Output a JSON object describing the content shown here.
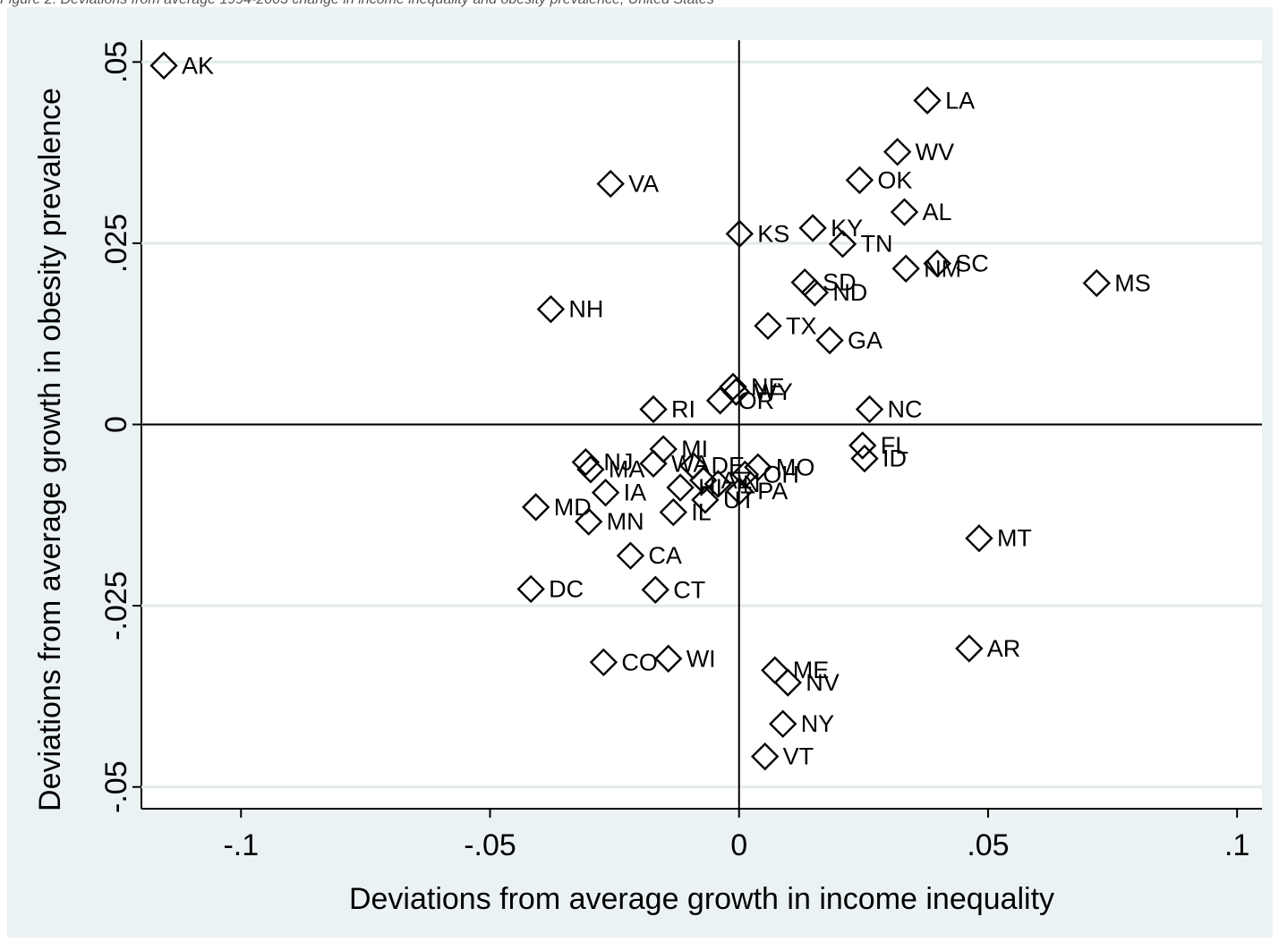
{
  "caption": "Figure 2. Deviations from average 1994-2003 change in income inequality and obesity prevalence, United States",
  "colors": {
    "background": "#eaf2f3",
    "plot": "#ffffff",
    "grid": "#e3eaec",
    "marker": "#000000"
  },
  "chart_data": {
    "type": "scatter",
    "title": "",
    "xlabel": "Deviations from average growth in income inequality",
    "ylabel": "Deviations from average growth in obesity prevalence",
    "xlim": [
      -0.12,
      0.105
    ],
    "ylim": [
      -0.053,
      0.053
    ],
    "xticks": [
      {
        "value": -0.1,
        "label": "-.1"
      },
      {
        "value": -0.05,
        "label": "-.05"
      },
      {
        "value": 0,
        "label": "0"
      },
      {
        "value": 0.05,
        "label": ".05"
      },
      {
        "value": 0.1,
        "label": ".1"
      }
    ],
    "yticks": [
      {
        "value": -0.05,
        "label": "-.05"
      },
      {
        "value": -0.025,
        "label": "-.025"
      },
      {
        "value": 0,
        "label": "0"
      },
      {
        "value": 0.025,
        "label": ".025"
      },
      {
        "value": 0.05,
        "label": ".05"
      }
    ],
    "grid": true,
    "reference_lines": {
      "x": 0,
      "y": 0
    },
    "marker": "hollow-diamond",
    "points": [
      {
        "label": "AK",
        "x": -0.1155,
        "y": 0.0495
      },
      {
        "label": "LA",
        "x": 0.0378,
        "y": 0.0447
      },
      {
        "label": "WV",
        "x": 0.0318,
        "y": 0.0376
      },
      {
        "label": "VA",
        "x": -0.0258,
        "y": 0.0332
      },
      {
        "label": "OK",
        "x": 0.0242,
        "y": 0.0337
      },
      {
        "label": "AL",
        "x": 0.0332,
        "y": 0.0293
      },
      {
        "label": "KY",
        "x": 0.0148,
        "y": 0.0271
      },
      {
        "label": "KS",
        "x": 0.0001,
        "y": 0.0263
      },
      {
        "label": "TN",
        "x": 0.0208,
        "y": 0.0249
      },
      {
        "label": "SC",
        "x": 0.0398,
        "y": 0.0222
      },
      {
        "label": "NM",
        "x": 0.0335,
        "y": 0.0215
      },
      {
        "label": "MS",
        "x": 0.0718,
        "y": 0.0195
      },
      {
        "label": "SD",
        "x": 0.0132,
        "y": 0.0196
      },
      {
        "label": "ND",
        "x": 0.0152,
        "y": 0.0182
      },
      {
        "label": "NH",
        "x": -0.0378,
        "y": 0.0159
      },
      {
        "label": "TX",
        "x": 0.0058,
        "y": 0.0136
      },
      {
        "label": "GA",
        "x": 0.0182,
        "y": 0.0116
      },
      {
        "label": "NE",
        "x": -0.0012,
        "y": 0.0052
      },
      {
        "label": "WY",
        "x": -0.0006,
        "y": 0.0045
      },
      {
        "label": "OR",
        "x": -0.0038,
        "y": 0.0033
      },
      {
        "label": "RI",
        "x": -0.0172,
        "y": 0.0021
      },
      {
        "label": "NC",
        "x": 0.0262,
        "y": 0.0021
      },
      {
        "label": "MI",
        "x": -0.0152,
        "y": -0.0034
      },
      {
        "label": "FL",
        "x": 0.0248,
        "y": -0.0029
      },
      {
        "label": "ID",
        "x": 0.0252,
        "y": -0.0047
      },
      {
        "label": "NJ",
        "x": -0.0308,
        "y": -0.0052
      },
      {
        "label": "MA",
        "x": -0.0298,
        "y": -0.0062
      },
      {
        "label": "WA",
        "x": -0.0172,
        "y": -0.0054
      },
      {
        "label": "DE",
        "x": -0.0092,
        "y": -0.0057
      },
      {
        "label": "MO",
        "x": 0.0038,
        "y": -0.0059
      },
      {
        "label": "OH",
        "x": 0.0012,
        "y": -0.0069
      },
      {
        "label": "AZ",
        "x": -0.0072,
        "y": -0.0077
      },
      {
        "label": "IN",
        "x": -0.0042,
        "y": -0.0082
      },
      {
        "label": "PA",
        "x": 0.0001,
        "y": -0.0092
      },
      {
        "label": "IA",
        "x": -0.0268,
        "y": -0.0094
      },
      {
        "label": "HI",
        "x": -0.0118,
        "y": -0.0087
      },
      {
        "label": "UT",
        "x": -0.0068,
        "y": -0.0104
      },
      {
        "label": "IL",
        "x": -0.0132,
        "y": -0.0121
      },
      {
        "label": "MD",
        "x": -0.0408,
        "y": -0.0114
      },
      {
        "label": "MN",
        "x": -0.0302,
        "y": -0.0134
      },
      {
        "label": "MT",
        "x": 0.0482,
        "y": -0.0157
      },
      {
        "label": "CA",
        "x": -0.0218,
        "y": -0.0181
      },
      {
        "label": "DC",
        "x": -0.0418,
        "y": -0.0227
      },
      {
        "label": "CT",
        "x": -0.0168,
        "y": -0.0228
      },
      {
        "label": "AR",
        "x": 0.0462,
        "y": -0.0309
      },
      {
        "label": "CO",
        "x": -0.0272,
        "y": -0.0328
      },
      {
        "label": "WI",
        "x": -0.0142,
        "y": -0.0323
      },
      {
        "label": "ME",
        "x": 0.0072,
        "y": -0.0339
      },
      {
        "label": "NV",
        "x": 0.0098,
        "y": -0.0356
      },
      {
        "label": "NY",
        "x": 0.0088,
        "y": -0.0413
      },
      {
        "label": "VT",
        "x": 0.0052,
        "y": -0.0458
      }
    ]
  }
}
